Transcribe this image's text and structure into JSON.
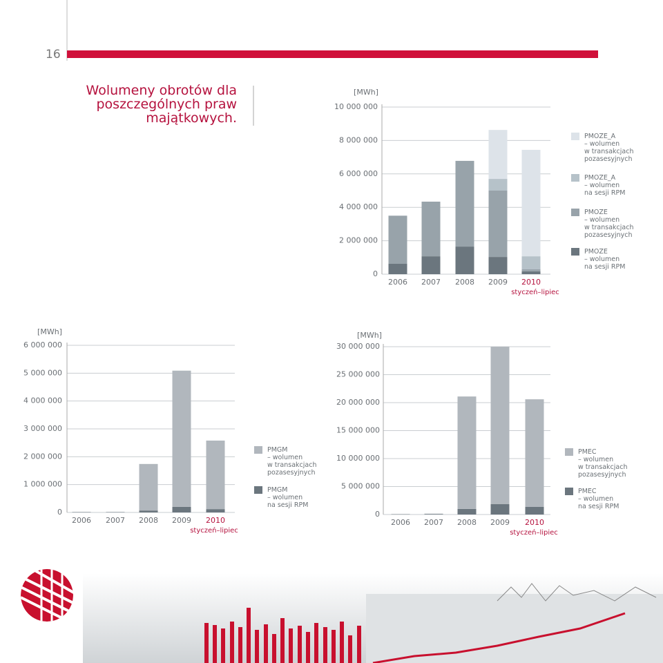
{
  "page_number": "16",
  "title": "Wolumeny obrotów dla\nposzczególnych praw\nmajątkowych.",
  "chart_data": [
    {
      "type": "bar",
      "stacked": true,
      "y_label": "[MWh]",
      "categories": [
        "2006",
        "2007",
        "2008",
        "2009",
        "2010"
      ],
      "category_note": "styczeń–lipiec",
      "ylim": [
        0,
        10000000
      ],
      "yticks": [
        0,
        {
          "value": 2000000,
          "label": "2 000 000"
        },
        {
          "value": 4000000,
          "label": "4 000 000"
        },
        {
          "value": 6000000,
          "label": "6 000 000"
        },
        {
          "value": 8000000,
          "label": "8 000 000"
        },
        {
          "value": 10000000,
          "label": "10 000 000"
        }
      ],
      "grid": true,
      "series": [
        {
          "name": "PMOZE\n– wolumen\nna sesji RPM",
          "color": "#6b767e",
          "values": [
            620000,
            1070000,
            1650000,
            1030000,
            170000
          ]
        },
        {
          "name": "PMOZE\n– wolumen\nw transakcjach\npozasesyjnych",
          "color": "#98a3aa",
          "values": [
            2880000,
            3270000,
            5130000,
            3970000,
            120000
          ]
        },
        {
          "name": "PMOZE_A\n– wolumen\nna sesji RPM",
          "color": "#b6c2c9",
          "values": [
            0,
            0,
            0,
            700000,
            780000
          ]
        },
        {
          "name": "PMOZE_A\n– wolumen\nw transakcjach\npozasesyjnych",
          "color": "#dde3e9",
          "values": [
            0,
            0,
            0,
            2930000,
            6370000
          ]
        }
      ]
    },
    {
      "type": "bar",
      "stacked": true,
      "y_label": "[MWh]",
      "categories": [
        "2006",
        "2007",
        "2008",
        "2009",
        "2010"
      ],
      "category_note": "styczeń–lipiec",
      "ylim": [
        0,
        6000000
      ],
      "yticks": [
        0,
        {
          "value": 1000000,
          "label": "1 000 000"
        },
        {
          "value": 2000000,
          "label": "2 000 000"
        },
        {
          "value": 3000000,
          "label": "3 000 000"
        },
        {
          "value": 4000000,
          "label": "4 000 000"
        },
        {
          "value": 5000000,
          "label": "5 000 000"
        },
        {
          "value": 6000000,
          "label": "6 000 000"
        }
      ],
      "grid": true,
      "series": [
        {
          "name": "PMGM\n– wolumen\nna sesji RPM",
          "color": "#6b767e",
          "values": [
            5000,
            5000,
            70000,
            200000,
            120000
          ]
        },
        {
          "name": "PMGM\n– wolumen\nw transakcjach\npozasesyjnych",
          "color": "#b1b7bd",
          "values": [
            20000,
            20000,
            1670000,
            4890000,
            2460000
          ]
        }
      ]
    },
    {
      "type": "bar",
      "stacked": true,
      "y_label": "[MWh]",
      "categories": [
        "2006",
        "2007",
        "2008",
        "2009",
        "2010"
      ],
      "category_note": "styczeń–lipiec",
      "ylim": [
        0,
        30000000
      ],
      "yticks": [
        0,
        {
          "value": 5000000,
          "label": "5 000 000"
        },
        {
          "value": 10000000,
          "label": "10 000 000"
        },
        {
          "value": 15000000,
          "label": "15 000 000"
        },
        {
          "value": 20000000,
          "label": "20 000 000"
        },
        {
          "value": 25000000,
          "label": "25 000 000"
        },
        {
          "value": 30000000,
          "label": "30 000 000"
        }
      ],
      "grid": true,
      "series": [
        {
          "name": "PMEC\n– wolumen\nna sesji RPM",
          "color": "#6b767e",
          "values": [
            50000,
            100000,
            1000000,
            1850000,
            1360000
          ]
        },
        {
          "name": "PMEC\n– wolumen\nw transakcjach\npozasesyjnych",
          "color": "#b1b7bd",
          "values": [
            30000,
            50000,
            20100000,
            28150000,
            19240000
          ]
        }
      ]
    }
  ]
}
